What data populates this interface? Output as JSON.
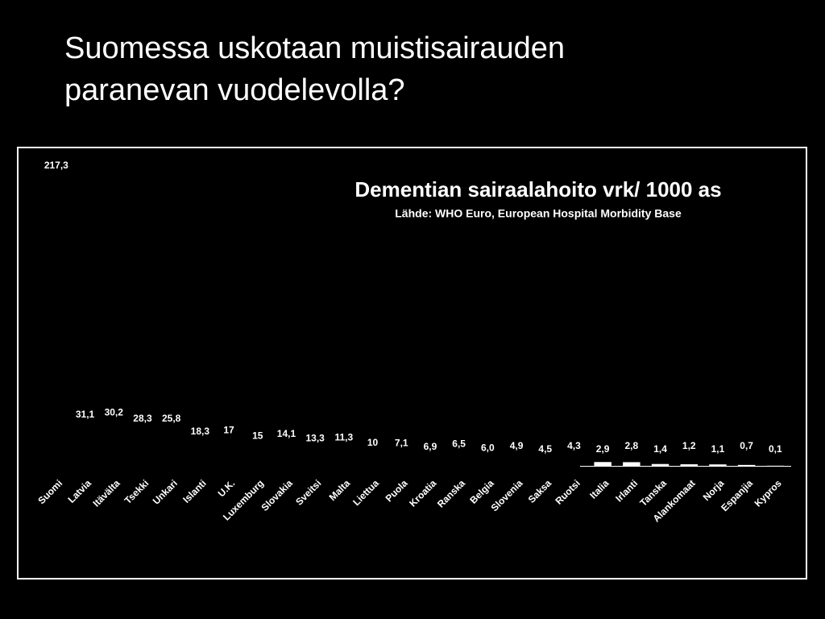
{
  "slide_title": [
    "Suomessa uskotaan muistisairauden",
    "paranevan vuodelevolla?"
  ],
  "chart_data": {
    "type": "bar",
    "title": "Dementian sairaalahoito vrk/ 1000 as",
    "subtitle": "Lähde: WHO Euro, European Hospital Morbidity Base",
    "categories": [
      "Suomi",
      "Latvia",
      "Itävälta",
      "Tsekki",
      "Unkari",
      "Islanti",
      "U.K.",
      "Luxemburg",
      "Slovakia",
      "Sveitsi",
      "Malta",
      "Liettua",
      "Puola",
      "Kroatia",
      "Ranska",
      "Belgia",
      "Slovenia",
      "Saksa",
      "Ruotsi",
      "Italia",
      "Irlanti",
      "Tanska",
      "Alankomaat",
      "Norja",
      "Espanjia",
      "Kypros"
    ],
    "values": [
      217.3,
      31.1,
      30.2,
      28.3,
      25.8,
      18.3,
      17,
      15,
      14.1,
      13.3,
      11.3,
      10,
      7.1,
      6.9,
      6.5,
      6.0,
      4.9,
      4.5,
      4.3,
      2.9,
      2.8,
      1.4,
      1.2,
      1.1,
      0.7,
      0.1
    ],
    "value_labels": [
      "217,3",
      "31,1",
      "30,2",
      "28,3",
      "25,8",
      "18,3",
      "17",
      "15",
      "14,1",
      "13,3",
      "11,3",
      "10",
      "7,1",
      "6,9",
      "6,5",
      "6,0",
      "4,9",
      "4,5",
      "4,3",
      "2,9",
      "2,8",
      "1,4",
      "1,2",
      "1,1",
      "0,7",
      "0,1"
    ],
    "colors": [
      "#000000",
      "#000000",
      "#000000",
      "#000000",
      "#000000",
      "#000000",
      "#000000",
      "#000000",
      "#000000",
      "#000000",
      "#000000",
      "#000000",
      "#000000",
      "#000000",
      "#000000",
      "#000000",
      "#000000",
      "#000000",
      "#000000",
      "#ffffff",
      "#ffffff",
      "#ffffff",
      "#ffffff",
      "#ffffff",
      "#ffffff",
      "#ffffff"
    ]
  }
}
